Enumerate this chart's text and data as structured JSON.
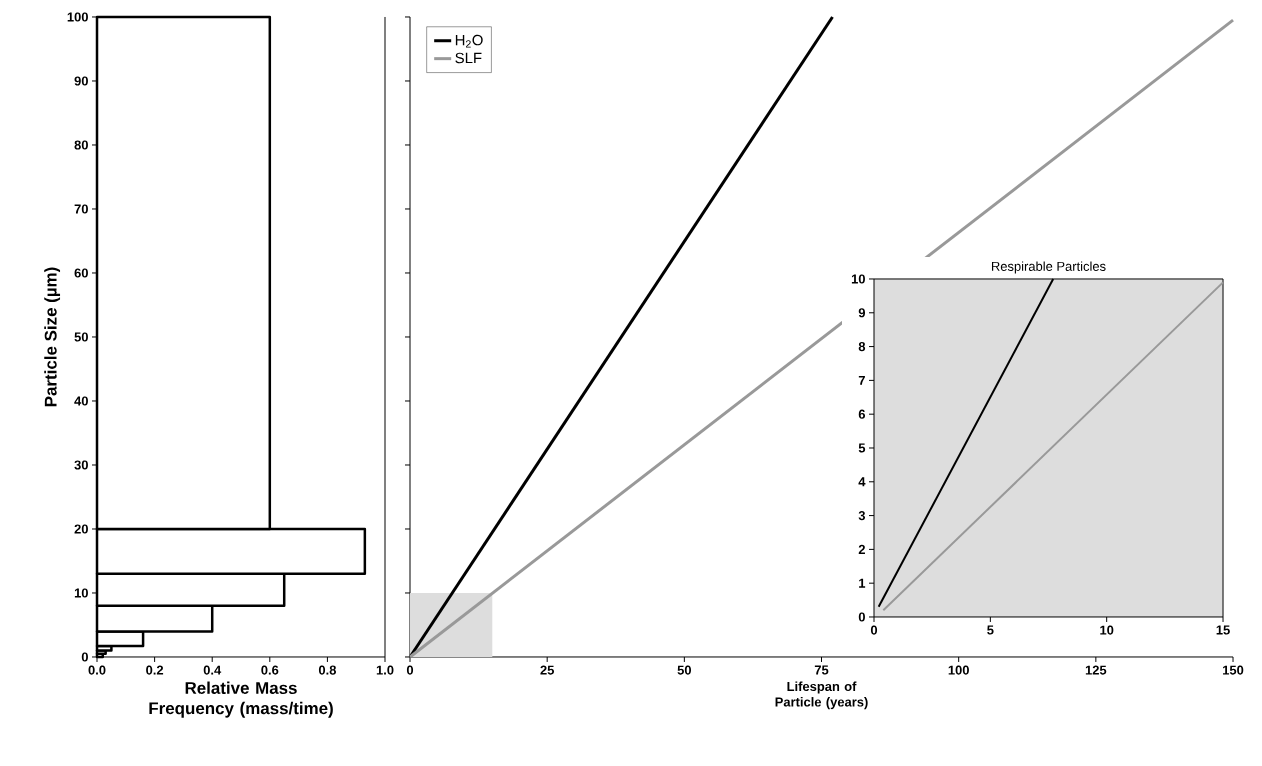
{
  "chart_data": [
    {
      "type": "histogram",
      "orientation": "horizontal",
      "ylabel": "Particle Size (µm)",
      "xlabel": "Relative Mass Frequency (mass/time)",
      "bins": [
        0,
        0.5,
        1,
        1.7,
        4,
        8,
        13,
        20,
        100
      ],
      "values": [
        0.02,
        0.03,
        0.05,
        0.16,
        0.4,
        0.65,
        0.93,
        0.6
      ],
      "color": "#000000",
      "xlim": [
        0,
        1
      ],
      "xticks": [
        {
          "value": 0,
          "label": "0.0"
        },
        {
          "value": 0.2,
          "label": "0.2"
        },
        {
          "value": 0.4,
          "label": "0.4"
        },
        {
          "value": 0.6,
          "label": "0.6"
        },
        {
          "value": 0.8,
          "label": "0.8"
        },
        {
          "value": 1,
          "label": "1.0"
        }
      ],
      "ylim": [
        0,
        100
      ],
      "yticks": [
        0,
        10,
        20,
        30,
        40,
        50,
        60,
        70,
        80,
        90,
        100
      ]
    },
    {
      "type": "line",
      "xlabel": "Lifespan of Particle (years)",
      "xlim": [
        0,
        150
      ],
      "xticks": [
        0,
        25,
        50,
        75,
        100,
        125,
        150
      ],
      "ylim": [
        0,
        100
      ],
      "yticks": [
        0,
        10,
        20,
        30,
        40,
        50,
        60,
        70,
        80,
        90,
        100
      ],
      "tick_labels": "x",
      "legend": "top left",
      "series": [
        {
          "type": "area",
          "color": "#dddddd",
          "x": [
            0,
            15
          ],
          "values": [
            10,
            10
          ]
        },
        {
          "name": "H$_{2}$O",
          "color": "#000000",
          "x": [
            0,
            77
          ],
          "values": [
            0,
            100
          ]
        },
        {
          "name": "SLF",
          "color": "#999999",
          "x": [
            0,
            150
          ],
          "values": [
            0,
            99.5
          ]
        }
      ]
    },
    {
      "type": "line",
      "title": "Respirable Particles",
      "xlim": [
        0,
        15
      ],
      "xticks": [
        0,
        5,
        10,
        15
      ],
      "ylim": [
        0,
        10
      ],
      "yticks": [
        0,
        1,
        2,
        3,
        4,
        5,
        6,
        7,
        8,
        9,
        10
      ],
      "series": [
        {
          "color": "#000000",
          "x": [
            0.2,
            7.7
          ],
          "values": [
            0.3,
            10
          ]
        },
        {
          "color": "#999999",
          "x": [
            0.4,
            15
          ],
          "values": [
            0.2,
            9.9
          ]
        }
      ]
    }
  ]
}
